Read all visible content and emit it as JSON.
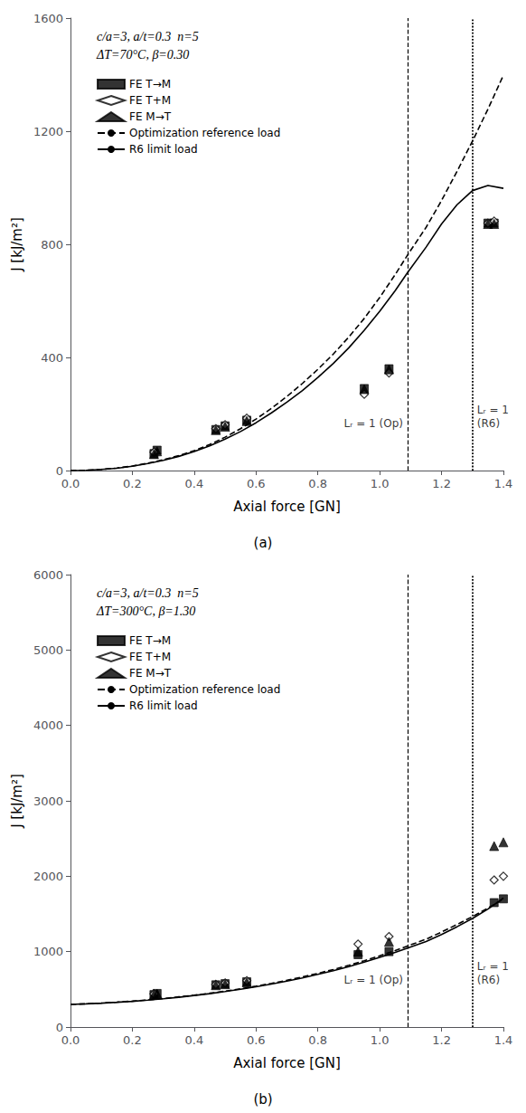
{
  "chart_data": [
    {
      "type": "line",
      "title": "c/a=3, a/t=0.3  n=5",
      "subtitle": "ΔT=70°C, β=0.30",
      "xlabel": "Axial force [GN]",
      "ylabel": "J [kJ/m²]",
      "xlim": [
        0.0,
        1.4
      ],
      "ylim": [
        0,
        1600
      ],
      "xticks": [
        {
          "value": 0.0,
          "label": "0.0"
        },
        0.2,
        0.4,
        0.6,
        0.8,
        {
          "value": 1.0,
          "label": "1.0"
        },
        1.2,
        1.4
      ],
      "yticks": [
        0,
        400,
        800,
        1200,
        1600
      ],
      "grid": false,
      "legend": "upper left",
      "series": [
        {
          "name": "FE T→M",
          "type": "scatter",
          "marker": "square",
          "color": "#000000",
          "x": [
            0.27,
            0.28,
            0.47,
            0.5,
            0.57,
            0.95,
            1.03,
            1.35,
            1.37
          ],
          "values": [
            60,
            72,
            145,
            158,
            178,
            290,
            360,
            875,
            875
          ]
        },
        {
          "name": "FE T+M",
          "type": "scatter",
          "marker": "open_diamond",
          "color": "#000000",
          "x": [
            0.27,
            0.47,
            0.5,
            0.57,
            0.95,
            1.03,
            1.35,
            1.37
          ],
          "values": [
            65,
            148,
            162,
            185,
            270,
            345,
            875,
            882
          ]
        },
        {
          "name": "FE M→T",
          "type": "scatter",
          "marker": "triangle",
          "color": "#000000",
          "x": [
            0.27,
            0.28,
            0.47,
            0.5,
            0.57,
            0.95,
            1.03,
            1.35,
            1.37
          ],
          "values": [
            58,
            68,
            143,
            155,
            175,
            288,
            358,
            872,
            872
          ]
        },
        {
          "name": "Optimization reference load",
          "type": "line",
          "line_style": "dashed",
          "color": "#000000",
          "x": [
            0.0,
            0.05,
            0.1,
            0.15,
            0.2,
            0.25,
            0.3,
            0.35,
            0.4,
            0.45,
            0.5,
            0.55,
            0.6,
            0.65,
            0.7,
            0.75,
            0.8,
            0.85,
            0.9,
            0.95,
            1.0,
            1.05,
            1.09,
            1.15,
            1.2,
            1.25,
            1.3,
            1.35,
            1.4
          ],
          "values": [
            0,
            1,
            4,
            9,
            16,
            26,
            38,
            53,
            70,
            92,
            118,
            148,
            182,
            220,
            262,
            308,
            358,
            412,
            472,
            538,
            612,
            693,
            762,
            860,
            955,
            1058,
            1165,
            1278,
            1398
          ]
        },
        {
          "name": "R6 limit load",
          "type": "line",
          "line_style": "solid",
          "color": "#000000",
          "x": [
            0.0,
            0.05,
            0.1,
            0.15,
            0.2,
            0.25,
            0.3,
            0.35,
            0.4,
            0.45,
            0.5,
            0.55,
            0.6,
            0.65,
            0.7,
            0.75,
            0.8,
            0.85,
            0.9,
            0.95,
            1.0,
            1.05,
            1.09,
            1.15,
            1.2,
            1.25,
            1.3,
            1.35,
            1.4
          ],
          "values": [
            0,
            1,
            4,
            8,
            15,
            25,
            36,
            50,
            67,
            87,
            111,
            138,
            169,
            204,
            242,
            283,
            329,
            379,
            434,
            496,
            563,
            636,
            700,
            790,
            872,
            940,
            990,
            1008,
            998
          ]
        }
      ],
      "vlines": [
        {
          "x": 1.09,
          "line_style": "dashed",
          "color": "#000000",
          "label": "Lᵣ = 1 (Op)"
        },
        {
          "x": 1.3,
          "line_style": "dotted",
          "color": "#000000",
          "label": "Lᵣ = 1\n(R6)"
        }
      ],
      "annotations": [
        {
          "text": "(a)"
        }
      ]
    },
    {
      "type": "line",
      "title": "c/a=3, a/t=0.3  n=5",
      "subtitle": "ΔT=300°C, β=1.30",
      "xlabel": "Axial force [GN]",
      "ylabel": "J [kJ/m²]",
      "xlim": [
        0.0,
        1.4
      ],
      "ylim": [
        0,
        6000
      ],
      "xticks": [
        {
          "value": 0.0,
          "label": "0.0"
        },
        0.2,
        0.4,
        0.6,
        0.8,
        {
          "value": 1.0,
          "label": "1.0"
        },
        1.2,
        1.4
      ],
      "yticks": [
        0,
        1000,
        2000,
        3000,
        4000,
        5000,
        6000
      ],
      "grid": false,
      "legend": "upper left",
      "series": [
        {
          "name": "FE T→M",
          "type": "scatter",
          "marker": "square",
          "color": "#000000",
          "x": [
            0.27,
            0.28,
            0.47,
            0.5,
            0.57,
            0.93,
            1.03,
            1.37,
            1.4
          ],
          "values": [
            430,
            445,
            560,
            575,
            600,
            960,
            1000,
            1650,
            1700
          ]
        },
        {
          "name": "FE T+M",
          "type": "scatter",
          "marker": "open_diamond",
          "color": "#000000",
          "x": [
            0.27,
            0.47,
            0.5,
            0.57,
            0.93,
            1.03,
            1.37,
            1.4
          ],
          "values": [
            440,
            565,
            585,
            615,
            1100,
            1200,
            1950,
            2000
          ]
        },
        {
          "name": "FE M→T",
          "type": "scatter",
          "marker": "triangle",
          "color": "#000000",
          "x": [
            0.27,
            0.28,
            0.47,
            0.5,
            0.57,
            0.93,
            1.03,
            1.37,
            1.4
          ],
          "values": [
            428,
            442,
            555,
            568,
            592,
            1000,
            1130,
            2400,
            2450
          ]
        },
        {
          "name": "Optimization reference load",
          "type": "line",
          "line_style": "dashed",
          "color": "#000000",
          "x": [
            0.0,
            0.05,
            0.1,
            0.15,
            0.2,
            0.25,
            0.3,
            0.35,
            0.4,
            0.45,
            0.5,
            0.55,
            0.6,
            0.65,
            0.7,
            0.75,
            0.8,
            0.85,
            0.9,
            0.95,
            1.0,
            1.05,
            1.09,
            1.15,
            1.2,
            1.25,
            1.3,
            1.35,
            1.4
          ],
          "values": [
            300,
            308,
            318,
            330,
            344,
            360,
            378,
            400,
            422,
            448,
            476,
            508,
            542,
            580,
            620,
            664,
            712,
            763,
            818,
            879,
            944,
            1014,
            1075,
            1165,
            1260,
            1360,
            1465,
            1578,
            1698
          ]
        },
        {
          "name": "R6 limit load",
          "type": "line",
          "line_style": "solid",
          "color": "#000000",
          "x": [
            0.0,
            0.05,
            0.1,
            0.15,
            0.2,
            0.25,
            0.3,
            0.35,
            0.4,
            0.45,
            0.5,
            0.55,
            0.6,
            0.65,
            0.7,
            0.75,
            0.8,
            0.85,
            0.9,
            0.95,
            1.0,
            1.05,
            1.09,
            1.15,
            1.2,
            1.25,
            1.3,
            1.35,
            1.4
          ],
          "values": [
            300,
            307,
            316,
            328,
            341,
            357,
            375,
            395,
            418,
            443,
            471,
            501,
            534,
            570,
            609,
            651,
            698,
            748,
            802,
            860,
            923,
            990,
            1048,
            1135,
            1228,
            1330,
            1440,
            1565,
            1710
          ]
        }
      ],
      "vlines": [
        {
          "x": 1.09,
          "line_style": "dashed",
          "color": "#000000",
          "label": "Lᵣ = 1 (Op)"
        },
        {
          "x": 1.3,
          "line_style": "dotted",
          "color": "#000000",
          "label": "Lᵣ = 1\n(R6)"
        }
      ],
      "annotations": [
        {
          "text": "(b)"
        }
      ]
    }
  ]
}
